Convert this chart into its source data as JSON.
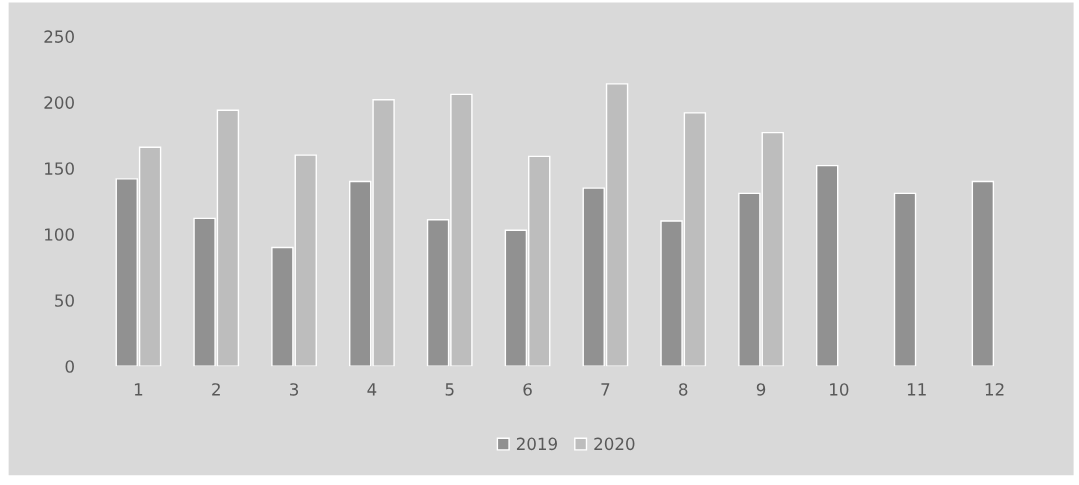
{
  "chart_data": {
    "type": "bar",
    "categories": [
      "1",
      "2",
      "3",
      "4",
      "5",
      "6",
      "7",
      "8",
      "9",
      "10",
      "11",
      "12"
    ],
    "series": [
      {
        "name": "2019",
        "color": "#919191",
        "values": [
          142,
          112,
          90,
          140,
          111,
          103,
          135,
          110,
          131,
          152,
          131,
          140
        ]
      },
      {
        "name": "2020",
        "color": "#bdbdbd",
        "values": [
          166,
          194,
          160,
          202,
          206,
          159,
          214,
          192,
          177,
          null,
          null,
          null
        ]
      }
    ],
    "ylim": [
      0,
      250
    ],
    "yticks": [
      0,
      50,
      100,
      150,
      200,
      250
    ],
    "grid": false,
    "legend": "bottom"
  }
}
